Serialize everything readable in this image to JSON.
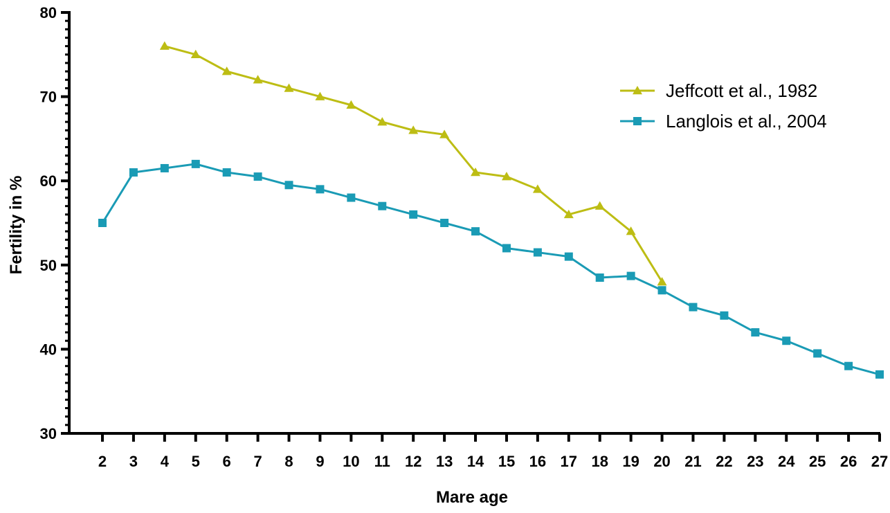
{
  "chart_data": {
    "type": "line",
    "xlabel": "Mare age",
    "ylabel": "Fertility in %",
    "xlim": [
      1,
      27
    ],
    "ylim": [
      30,
      80
    ],
    "x_ticks": [
      2,
      3,
      4,
      5,
      6,
      7,
      8,
      9,
      10,
      11,
      12,
      13,
      14,
      15,
      16,
      17,
      18,
      19,
      20,
      21,
      22,
      23,
      24,
      25,
      26,
      27
    ],
    "y_ticks": [
      30,
      40,
      50,
      60,
      70,
      80
    ],
    "y_minor_step": 1,
    "grid": false,
    "legend_position": "top-right",
    "series": [
      {
        "name": "Jeffcott et al., 1982",
        "color": "#bdbd14",
        "marker": "triangle",
        "x": [
          4,
          5,
          6,
          7,
          8,
          9,
          10,
          11,
          12,
          13,
          14,
          15,
          16,
          17,
          18,
          19,
          20
        ],
        "y": [
          76,
          75,
          73,
          72,
          71,
          70,
          69,
          67,
          66,
          65.5,
          61,
          60.5,
          59,
          56,
          57,
          54,
          48
        ]
      },
      {
        "name": "Langlois et al., 2004",
        "color": "#1a9bb5",
        "marker": "square",
        "x": [
          2,
          3,
          4,
          5,
          6,
          7,
          8,
          9,
          10,
          11,
          12,
          13,
          14,
          15,
          16,
          17,
          18,
          19,
          20,
          21,
          22,
          23,
          24,
          25,
          26,
          27
        ],
        "y": [
          55,
          61,
          61.5,
          62,
          61,
          60.5,
          59.5,
          59,
          58,
          57,
          56,
          55,
          54,
          52,
          51.5,
          51,
          48.5,
          48.7,
          47,
          45,
          44,
          42,
          41,
          39.5,
          38,
          37
        ]
      }
    ]
  }
}
